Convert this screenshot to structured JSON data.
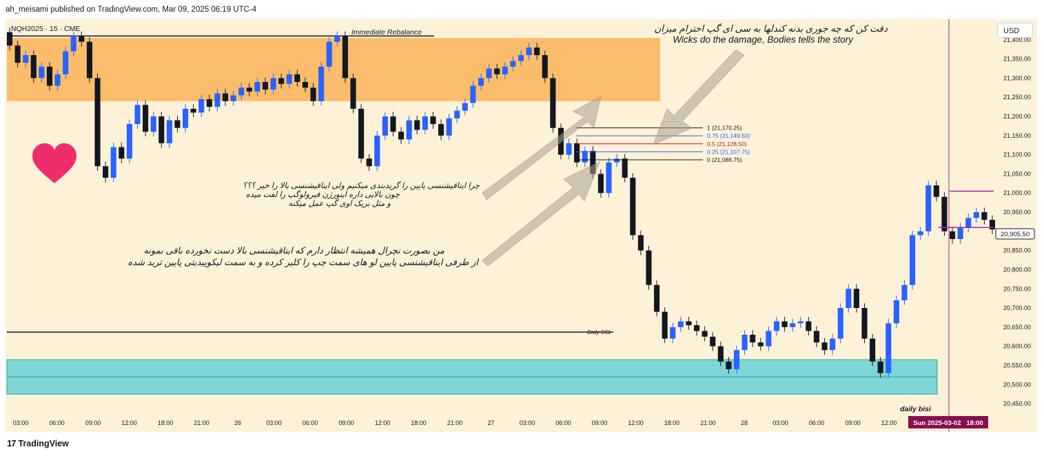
{
  "header": {
    "publisher_line": "ah_meisami published on TradingView.com, Mar 09, 2025 06:19 UTC-4"
  },
  "footer": {
    "brand": "TradingView",
    "logo_glyph": "17"
  },
  "currency_button": "USD",
  "chart_data": {
    "type": "candlestick",
    "symbol_label": "NQH2025 · 15 · CME",
    "ylim": [
      20425,
      21450
    ],
    "y_ticks": [
      "21,400.00",
      "21,350.00",
      "21,300.00",
      "21,250.00",
      "21,200.00",
      "21,150.00",
      "21,100.00",
      "21,050.00",
      "21,000.00",
      "20,950.00",
      "20,900.00",
      "20,850.00",
      "20,800.00",
      "20,750.00",
      "20,700.00",
      "20,650.00",
      "20,600.00",
      "20,550.00",
      "20,500.00",
      "20,450.00"
    ],
    "x_ticks": [
      "03:00",
      "06:00",
      "09:00",
      "12:00",
      "18:00",
      "21:00",
      "26",
      "03:00",
      "06:00",
      "09:00",
      "12:00",
      "18:00",
      "21:00",
      "27",
      "03:00",
      "06:00",
      "09:00",
      "12:00",
      "18:00",
      "21:00",
      "28",
      "03:00",
      "06:00",
      "09:00",
      "12:00"
    ],
    "last_price_label": "20,905.50",
    "last_price": 20905.5,
    "crosshair_date_label": "Sun 2025-03-02   18:00",
    "zones": [
      {
        "name": "Immediate Rebalance",
        "from": 21240,
        "to": 21405,
        "color": "#fbbd6b"
      },
      {
        "name": "daily bisi",
        "from": 20475,
        "to": 20565,
        "mid": 20520,
        "color": "#7fd6d6"
      }
    ],
    "levels": [
      {
        "label": "Immediate Rebalance",
        "price": 21410
      },
      {
        "label": "Daily SSL",
        "price": 20637
      }
    ],
    "fib_levels": [
      {
        "label": "1 (21,170.25)",
        "price": 21170.25,
        "color": "#131722"
      },
      {
        "label": "0.75 (21,149.50)",
        "price": 21149.5,
        "color": "#2962ff"
      },
      {
        "label": "0.5 (21,128.50)",
        "price": 21128.5,
        "color": "#b71c1c"
      },
      {
        "label": "0.25 (21,107.75)",
        "price": 21107.75,
        "color": "#2962ff"
      },
      {
        "label": "0 (21,086.75)",
        "price": 21086.75,
        "color": "#131722"
      }
    ],
    "purple_levels": [
      21005,
      20910
    ],
    "annotations": {
      "top_persian": "دقت کن که چه جوری بدنه کندلها به سی ای گپ احترام میزان",
      "top_english": "Wicks do the damage, Bodies tells the story",
      "mid_persian": [
        "چرا ایناقیشنسی پایین را گریدبندی میکنیم ولی ایناقیشنسی بالا را خیر ؟؟؟",
        "چون بالایی داره اینورژن فیرولوگپ را لفت میده",
        "و مثل بریک اوی گپ عمل میکنه"
      ],
      "low_persian": [
        "من بصورت نچرال همیشه انتظار دارم که ایناقیشنسی  بالا دست نخورده باقی بمونه",
        "از طرفی ایناقیشنسی پایین لو های سمت چپ را کلیر کرده و به سمت لیکوییدیتی پایین ترید شده"
      ]
    },
    "series": [
      {
        "name": "price",
        "points": [
          [
            21420,
            21385
          ],
          [
            21385,
            21340
          ],
          [
            21340,
            21360
          ],
          [
            21360,
            21300
          ],
          [
            21300,
            21330
          ],
          [
            21330,
            21280
          ],
          [
            21280,
            21310
          ],
          [
            21310,
            21370
          ],
          [
            21370,
            21410
          ],
          [
            21410,
            21395
          ],
          [
            21395,
            21300
          ],
          [
            21300,
            21070
          ],
          [
            21070,
            21040
          ],
          [
            21040,
            21120
          ],
          [
            21120,
            21090
          ],
          [
            21090,
            21180
          ],
          [
            21180,
            21230
          ],
          [
            21230,
            21160
          ],
          [
            21160,
            21200
          ],
          [
            21200,
            21130
          ],
          [
            21130,
            21190
          ],
          [
            21190,
            21170
          ],
          [
            21170,
            21220
          ],
          [
            21220,
            21210
          ],
          [
            21210,
            21245
          ],
          [
            21245,
            21225
          ],
          [
            21225,
            21260
          ],
          [
            21260,
            21240
          ],
          [
            21240,
            21255
          ],
          [
            21255,
            21275
          ],
          [
            21275,
            21265
          ],
          [
            21265,
            21290
          ],
          [
            21290,
            21270
          ],
          [
            21270,
            21300
          ],
          [
            21300,
            21285
          ],
          [
            21285,
            21310
          ],
          [
            21310,
            21290
          ],
          [
            21290,
            21275
          ],
          [
            21275,
            21240
          ],
          [
            21240,
            21330
          ],
          [
            21330,
            21395
          ],
          [
            21395,
            21410
          ],
          [
            21410,
            21300
          ],
          [
            21300,
            21220
          ],
          [
            21220,
            21090
          ],
          [
            21090,
            21070
          ],
          [
            21070,
            21150
          ],
          [
            21150,
            21200
          ],
          [
            21200,
            21160
          ],
          [
            21160,
            21140
          ],
          [
            21140,
            21190
          ],
          [
            21190,
            21165
          ],
          [
            21165,
            21200
          ],
          [
            21200,
            21180
          ],
          [
            21180,
            21150
          ],
          [
            21150,
            21195
          ],
          [
            21195,
            21215
          ],
          [
            21215,
            21235
          ],
          [
            21235,
            21280
          ],
          [
            21280,
            21300
          ],
          [
            21300,
            21325
          ],
          [
            21325,
            21310
          ],
          [
            21310,
            21330
          ],
          [
            21330,
            21345
          ],
          [
            21345,
            21360
          ],
          [
            21360,
            21380
          ],
          [
            21380,
            21360
          ],
          [
            21360,
            21300
          ],
          [
            21300,
            21170
          ],
          [
            21170,
            21100
          ],
          [
            21100,
            21130
          ],
          [
            21130,
            21080
          ],
          [
            21080,
            21110
          ],
          [
            21110,
            21050
          ],
          [
            21050,
            21000
          ],
          [
            21000,
            21080
          ],
          [
            21080,
            21090
          ],
          [
            21090,
            21040
          ],
          [
            21040,
            20890
          ],
          [
            20890,
            20850
          ],
          [
            20850,
            20760
          ],
          [
            20760,
            20690
          ],
          [
            20690,
            20620
          ],
          [
            20620,
            20650
          ],
          [
            20650,
            20665
          ],
          [
            20665,
            20655
          ],
          [
            20655,
            20640
          ],
          [
            20640,
            20625
          ],
          [
            20625,
            20600
          ],
          [
            20600,
            20560
          ],
          [
            20560,
            20540
          ],
          [
            20540,
            20590
          ],
          [
            20590,
            20630
          ],
          [
            20630,
            20610
          ],
          [
            20610,
            20600
          ],
          [
            20600,
            20640
          ],
          [
            20640,
            20665
          ],
          [
            20665,
            20650
          ],
          [
            20650,
            20660
          ],
          [
            20660,
            20665
          ],
          [
            20665,
            20640
          ],
          [
            20640,
            20610
          ],
          [
            20610,
            20590
          ],
          [
            20590,
            20620
          ],
          [
            20620,
            20700
          ],
          [
            20700,
            20750
          ],
          [
            20750,
            20700
          ],
          [
            20700,
            20620
          ],
          [
            20620,
            20560
          ],
          [
            20560,
            20530
          ],
          [
            20530,
            20660
          ],
          [
            20660,
            20720
          ],
          [
            20720,
            20760
          ],
          [
            20760,
            20890
          ],
          [
            20890,
            20900
          ],
          [
            20900,
            21020
          ],
          [
            21020,
            20990
          ],
          [
            20990,
            20900
          ],
          [
            20900,
            20880
          ],
          [
            20880,
            20910
          ],
          [
            20910,
            20935
          ],
          [
            20935,
            20950
          ],
          [
            20950,
            20930
          ],
          [
            20930,
            20905
          ]
        ]
      }
    ]
  }
}
